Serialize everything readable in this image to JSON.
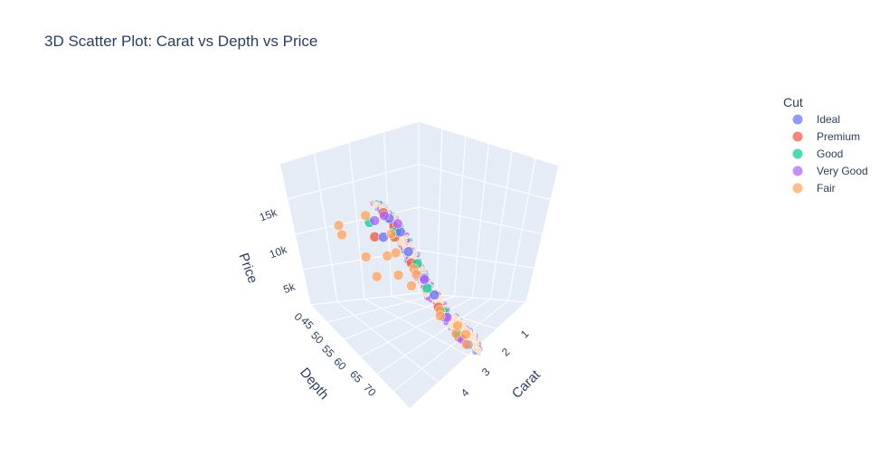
{
  "chart_data": {
    "type": "scatter",
    "subtype": "3d",
    "title": "3D Scatter Plot: Carat vs Depth vs Price",
    "axes": {
      "x": {
        "label": "Carat",
        "ticks": [
          "1",
          "2",
          "3",
          "4"
        ],
        "range": [
          0.2,
          4.5
        ]
      },
      "y": {
        "label": "Depth",
        "ticks": [
          "45",
          "50",
          "55",
          "60",
          "65",
          "70"
        ],
        "range": [
          43,
          79
        ]
      },
      "z": {
        "label": "Price",
        "ticks": [
          "0",
          "5k",
          "10k",
          "15k"
        ],
        "range": [
          0,
          19000
        ]
      }
    },
    "legend": {
      "title": "Cut",
      "placement": "right",
      "items": [
        {
          "name": "Ideal",
          "color": "#636efa"
        },
        {
          "name": "Premium",
          "color": "#EF553B"
        },
        {
          "name": "Good",
          "color": "#00cc96"
        },
        {
          "name": "Very Good",
          "color": "#ab63fa"
        },
        {
          "name": "Fair",
          "color": "#FFA15A"
        }
      ]
    },
    "series": [
      {
        "name": "Ideal",
        "color": "#636efa",
        "points": [
          [
            0.3,
            62,
            500
          ],
          [
            0.9,
            61.5,
            4200
          ],
          [
            1.2,
            62.2,
            7600
          ],
          [
            1.8,
            61.8,
            13500
          ],
          [
            2.0,
            62.5,
            16500
          ],
          [
            2.2,
            61,
            17800
          ],
          [
            1.5,
            62.8,
            10200
          ],
          [
            2.5,
            60,
            15000
          ]
        ]
      },
      {
        "name": "Premium",
        "color": "#EF553B",
        "points": [
          [
            0.5,
            61,
            1200
          ],
          [
            1.0,
            60.5,
            5200
          ],
          [
            1.6,
            59.5,
            11000
          ],
          [
            2.1,
            61.2,
            16800
          ],
          [
            2.3,
            60,
            18200
          ],
          [
            3.0,
            62,
            16000
          ],
          [
            1.9,
            58,
            14000
          ]
        ]
      },
      {
        "name": "Good",
        "color": "#00cc96",
        "points": [
          [
            0.7,
            63,
            2500
          ],
          [
            1.1,
            64,
            6000
          ],
          [
            1.7,
            63.5,
            12500
          ],
          [
            2.3,
            64,
            17200
          ],
          [
            3.2,
            63.5,
            18600
          ],
          [
            1.4,
            62,
            8500
          ]
        ]
      },
      {
        "name": "Very Good",
        "color": "#ab63fa",
        "points": [
          [
            0.4,
            61,
            900
          ],
          [
            0.9,
            62.3,
            4500
          ],
          [
            1.4,
            61.6,
            9500
          ],
          [
            2.0,
            62,
            17400
          ],
          [
            2.4,
            61.4,
            18400
          ],
          [
            2.8,
            61.2,
            17800
          ]
        ]
      },
      {
        "name": "Fair",
        "color": "#FFA15A",
        "points": [
          [
            0.6,
            65,
            1800
          ],
          [
            1.0,
            66,
            3800
          ],
          [
            1.5,
            67,
            7500
          ],
          [
            2.0,
            65,
            12500
          ],
          [
            2.5,
            64,
            17000
          ],
          [
            3.0,
            66,
            15000
          ],
          [
            3.5,
            65,
            12000
          ],
          [
            4.0,
            68,
            16000
          ],
          [
            4.5,
            65,
            18000
          ],
          [
            1.2,
            70,
            6500
          ],
          [
            2.2,
            68,
            13000
          ],
          [
            0.8,
            58,
            3000
          ],
          [
            3.8,
            56,
            15500
          ],
          [
            2.6,
            55,
            16000
          ],
          [
            1.9,
            57,
            11500
          ],
          [
            1.0,
            45,
            3500
          ],
          [
            0.5,
            44,
            1500
          ],
          [
            1.7,
            79,
            9000
          ]
        ]
      }
    ]
  }
}
